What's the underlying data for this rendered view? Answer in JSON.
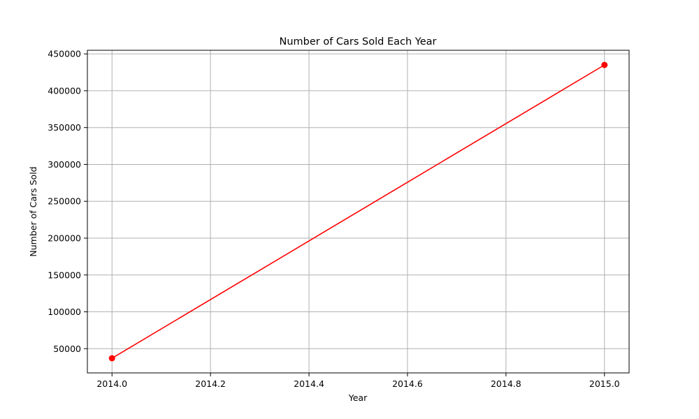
{
  "chart_data": {
    "type": "line",
    "title": "Number of Cars Sold Each Year",
    "xlabel": "Year",
    "ylabel": "Number of Cars Sold",
    "x": [
      2014.0,
      2015.0
    ],
    "series": [
      {
        "values": [
          37000,
          435000
        ],
        "color": "#ff0000",
        "marker": "circle"
      }
    ],
    "xlim": [
      2013.95,
      2015.05
    ],
    "ylim": [
      17100,
      454900
    ],
    "xticks": [
      2014.0,
      2014.2,
      2014.4,
      2014.6,
      2014.8,
      2015.0
    ],
    "xtick_labels": [
      "2014.0",
      "2014.2",
      "2014.4",
      "2014.6",
      "2014.8",
      "2015.0"
    ],
    "yticks": [
      50000,
      100000,
      150000,
      200000,
      250000,
      300000,
      350000,
      400000,
      450000
    ],
    "ytick_labels": [
      "50000",
      "100000",
      "150000",
      "200000",
      "250000",
      "300000",
      "350000",
      "400000",
      "450000"
    ],
    "grid": true,
    "legend": false
  }
}
